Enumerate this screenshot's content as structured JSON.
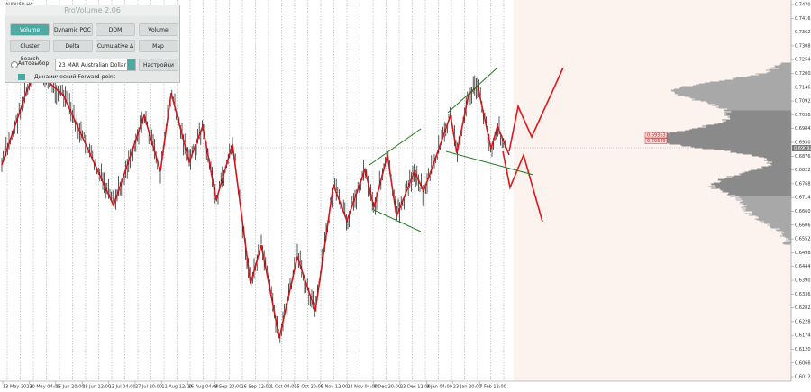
{
  "symbol": "AUDUSD,H4",
  "panel": {
    "title": "ProVolume 2.06",
    "buttons": [
      "Volume Profile",
      "Dynamic POC",
      "DOM",
      "Volume",
      "Cluster Search",
      "Delta",
      "Cumulative Δ",
      "Map"
    ],
    "auto_select": "Автовыбор",
    "instrument": "23 MAR Australian Dollar",
    "settings": "Настройки",
    "forward_point": "Динамический Forward-point"
  },
  "price_axis": [
    "0.74701",
    "0.74161",
    "0.73621",
    "0.73081",
    "0.72545",
    "0.72005",
    "0.71465",
    "0.70925",
    "0.70385",
    "0.69845",
    "0.69305",
    "0.68765",
    "0.68225",
    "0.67685",
    "0.67145",
    "0.66605",
    "0.66065",
    "0.65525",
    "0.64985",
    "0.64445",
    "0.63905",
    "0.63365",
    "0.62825",
    "0.62285",
    "0.61745",
    "0.61205",
    "0.60665",
    "0.60125"
  ],
  "current_price": "0.69092",
  "price_boxes": [
    "0.69363",
    "0.69349"
  ],
  "time_axis": [
    "13 May 2022",
    "30 May 04:00",
    "15 Jun 20:00",
    "28 Jun 12:00",
    "13 Jul 04:00",
    "27 Jul 20:00",
    "11 Aug 12:00",
    "26 Aug 04:00",
    "9 Sep 20:00",
    "26 Sep 12:00",
    "11 Oct 04:00",
    "25 Oct 20:00",
    "9 Nov 12:00",
    "24 Nov 04:00",
    "8 Dec 20:00",
    "23 Dec 12:00",
    "9 Jan 04:00",
    "23 Jan 20:00",
    "7 Feb 12:00"
  ]
}
